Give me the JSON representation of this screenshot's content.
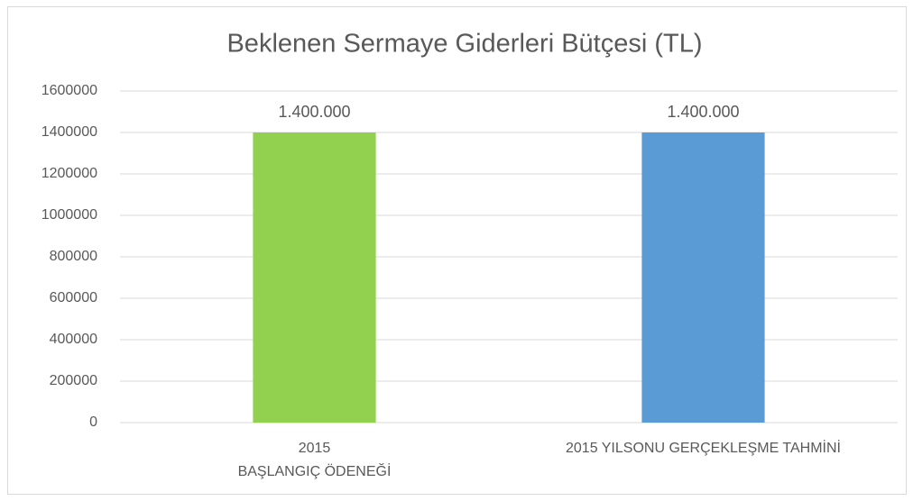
{
  "chart_data": {
    "type": "bar",
    "title": "Beklenen Sermaye Giderleri Bütçesi  (TL)",
    "categories": [
      "2015\nBAŞLANGIÇ ÖDENEĞİ",
      "2015 YILSONU GERÇEKLEŞME TAHMİNİ"
    ],
    "values": [
      1400000,
      1400000
    ],
    "value_labels": [
      "1.400.000",
      "1.400.000"
    ],
    "colors": [
      "#92d050",
      "#5b9bd5"
    ],
    "ylim": [
      0,
      1600000
    ],
    "yticks": [
      0,
      200000,
      400000,
      600000,
      800000,
      1000000,
      1200000,
      1400000,
      1600000
    ],
    "grid": true
  }
}
